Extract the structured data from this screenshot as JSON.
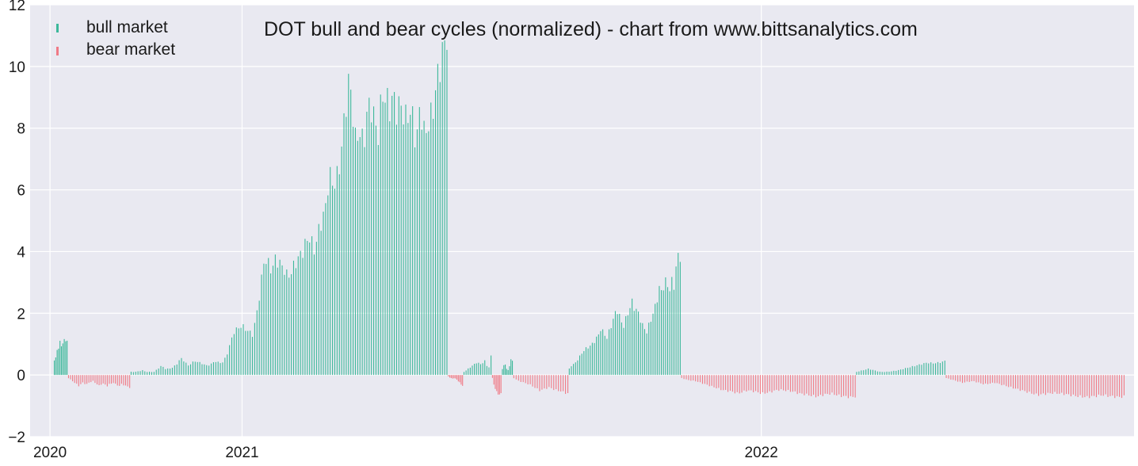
{
  "chart_data": {
    "type": "bar",
    "title": "DOT bull and bear cycles (normalized)  - chart from www.bittsanalytics.com",
    "xlabel": "",
    "ylabel": "",
    "ylim": [
      -2,
      12
    ],
    "yticks": [
      "−2",
      "0",
      "2",
      "4",
      "6",
      "8",
      "10",
      "12"
    ],
    "ytick_values": [
      -2,
      0,
      2,
      4,
      6,
      8,
      10,
      12
    ],
    "xticks": [
      {
        "label": "2020",
        "date": "2020-08-19"
      },
      {
        "label": "2021",
        "date": "2021-01-01"
      },
      {
        "label": "2022",
        "date": "2022-01-01"
      }
    ],
    "xlim": [
      "2020-08-05",
      "2022-09-20"
    ],
    "grid": true,
    "legend": {
      "placement": "top-left",
      "entries": [
        {
          "label": "bull market",
          "color": "#3cb89a"
        },
        {
          "label": "bear market",
          "color": "#f07a86"
        }
      ]
    },
    "colors": {
      "background": "#e9e9f1",
      "grid": "#ffffff",
      "bull": "#3cb89a",
      "bear": "#f07a86"
    },
    "series": [
      {
        "name": "bull market",
        "segments": [
          {
            "start": "2020-08-22",
            "end": "2020-08-31",
            "values": [
              0.5,
              0.55,
              0.8,
              0.9,
              1.05,
              0.95,
              1.05,
              1.1,
              1.15,
              1.1
            ]
          },
          {
            "start": "2020-10-15",
            "end": "2021-05-25",
            "values": [
              0.1,
              0.1,
              0.12,
              0.15,
              0.1,
              0.1,
              0.1,
              0.2,
              0.3,
              0.2,
              0.2,
              0.25,
              0.35,
              0.55,
              0.45,
              0.3,
              0.4,
              0.45,
              0.4,
              0.35,
              0.3,
              0.35,
              0.45,
              0.4,
              0.4,
              0.6,
              1.0,
              1.4,
              1.5,
              1.6,
              1.5,
              1.4,
              1.3,
              2.0,
              2.8,
              3.8,
              3.6,
              3.4,
              3.8,
              3.6,
              3.5,
              3.2,
              3.3,
              3.6,
              3.8,
              4.0,
              4.3,
              4.5,
              4.0,
              4.5,
              5.0,
              5.3,
              6.5,
              6.2,
              6.3,
              7.0,
              8.2,
              9.5,
              9.0,
              7.5,
              8.0,
              7.4,
              8.5,
              8.8,
              8.2,
              7.8,
              9.2,
              8.9,
              8.7,
              9.0,
              8.5,
              8.8,
              8.2,
              8.6,
              8.3,
              7.5,
              8.8,
              7.8,
              8.1,
              8.4,
              9.2,
              10.0,
              10.5,
              11.1
            ]
          }
        ]
      },
      {
        "name": "bear market",
        "segments": [
          {
            "start": "2020-09-01",
            "end": "2020-10-14",
            "values": [
              -0.1,
              -0.15,
              -0.2,
              -0.25,
              -0.3,
              -0.35,
              -0.3,
              -0.25,
              -0.28,
              -0.3,
              -0.25,
              -0.22,
              -0.2,
              -0.25,
              -0.3,
              -0.35,
              -0.3,
              -0.28,
              -0.32,
              -0.35,
              -0.3,
              -0.28,
              -0.25,
              -0.3,
              -0.33,
              -0.35,
              -0.3,
              -0.32,
              -0.35,
              -0.38,
              -0.4
            ]
          },
          {
            "start": "2021-05-26",
            "end": "2021-06-05",
            "values": [
              -0.05,
              -0.08,
              -0.1,
              -0.12,
              -0.1,
              -0.12,
              -0.15,
              -0.2,
              -0.25,
              -0.3,
              -0.35
            ]
          },
          {
            "start": "2021-06-26",
            "end": "2021-07-02",
            "values": [
              -0.1,
              -0.3,
              -0.45,
              -0.55,
              -0.6,
              -0.65,
              -0.6
            ]
          },
          {
            "start": "2021-07-11",
            "end": "2021-08-18",
            "values": [
              -0.1,
              -0.15,
              -0.2,
              -0.22,
              -0.25,
              -0.28,
              -0.3,
              -0.35,
              -0.4,
              -0.45,
              -0.5,
              -0.48,
              -0.45,
              -0.42,
              -0.4,
              -0.45,
              -0.48,
              -0.5,
              -0.52,
              -0.55,
              -0.58,
              -0.6
            ]
          },
          {
            "start": "2021-11-06",
            "end": "2022-03-08",
            "values": [
              -0.1,
              -0.15,
              -0.18,
              -0.2,
              -0.25,
              -0.3,
              -0.35,
              -0.4,
              -0.45,
              -0.5,
              -0.52,
              -0.55,
              -0.6,
              -0.55,
              -0.5,
              -0.52,
              -0.55,
              -0.6,
              -0.58,
              -0.55,
              -0.5,
              -0.48,
              -0.5,
              -0.52,
              -0.55,
              -0.6,
              -0.62,
              -0.65,
              -0.68,
              -0.7,
              -0.65,
              -0.62,
              -0.6,
              -0.65,
              -0.68,
              -0.7,
              -0.72,
              -0.7
            ]
          },
          {
            "start": "2022-05-11",
            "end": "2022-09-13",
            "values": [
              -0.1,
              -0.15,
              -0.2,
              -0.25,
              -0.22,
              -0.2,
              -0.25,
              -0.3,
              -0.28,
              -0.25,
              -0.3,
              -0.35,
              -0.4,
              -0.45,
              -0.5,
              -0.55,
              -0.6,
              -0.65,
              -0.62,
              -0.6,
              -0.58,
              -0.6,
              -0.62,
              -0.65,
              -0.68,
              -0.7,
              -0.72,
              -0.7,
              -0.68,
              -0.65,
              -0.68,
              -0.7,
              -0.72,
              -0.7
            ]
          }
        ]
      },
      {
        "name": "bull market",
        "segments": [
          {
            "start": "2021-06-06",
            "end": "2021-06-25",
            "values": [
              0.1,
              0.15,
              0.2,
              0.25,
              0.3,
              0.35,
              0.4,
              0.38,
              0.35,
              0.4,
              0.45,
              0.3,
              0.25,
              0.6
            ]
          },
          {
            "start": "2021-07-03",
            "end": "2021-07-10",
            "values": [
              0.2,
              0.3,
              0.35,
              0.2,
              0.15,
              0.3,
              0.5,
              0.45
            ]
          },
          {
            "start": "2021-08-19",
            "end": "2021-11-05",
            "values": [
              0.2,
              0.3,
              0.35,
              0.4,
              0.5,
              0.6,
              0.7,
              0.8,
              0.85,
              0.9,
              0.95,
              1.0,
              1.1,
              1.2,
              1.3,
              1.5,
              1.4,
              1.3,
              1.2,
              1.4,
              1.6,
              1.8,
              2.0,
              2.1,
              1.9,
              1.7,
              1.6,
              1.8,
              2.0,
              2.2,
              2.35,
              2.2,
              2.1,
              2.0,
              1.8,
              1.6,
              1.5,
              1.4,
              1.6,
              1.8,
              2.0,
              2.2,
              2.5,
              2.8,
              2.7,
              2.9,
              3.0,
              2.9,
              2.8,
              3.0,
              2.9,
              3.5,
              3.8,
              3.9
            ]
          },
          {
            "start": "2022-03-09",
            "end": "2022-05-10",
            "values": [
              0.1,
              0.15,
              0.2,
              0.15,
              0.1,
              0.1,
              0.12,
              0.15,
              0.2,
              0.25,
              0.3,
              0.35,
              0.4,
              0.38,
              0.4,
              0.45
            ]
          }
        ]
      }
    ]
  }
}
